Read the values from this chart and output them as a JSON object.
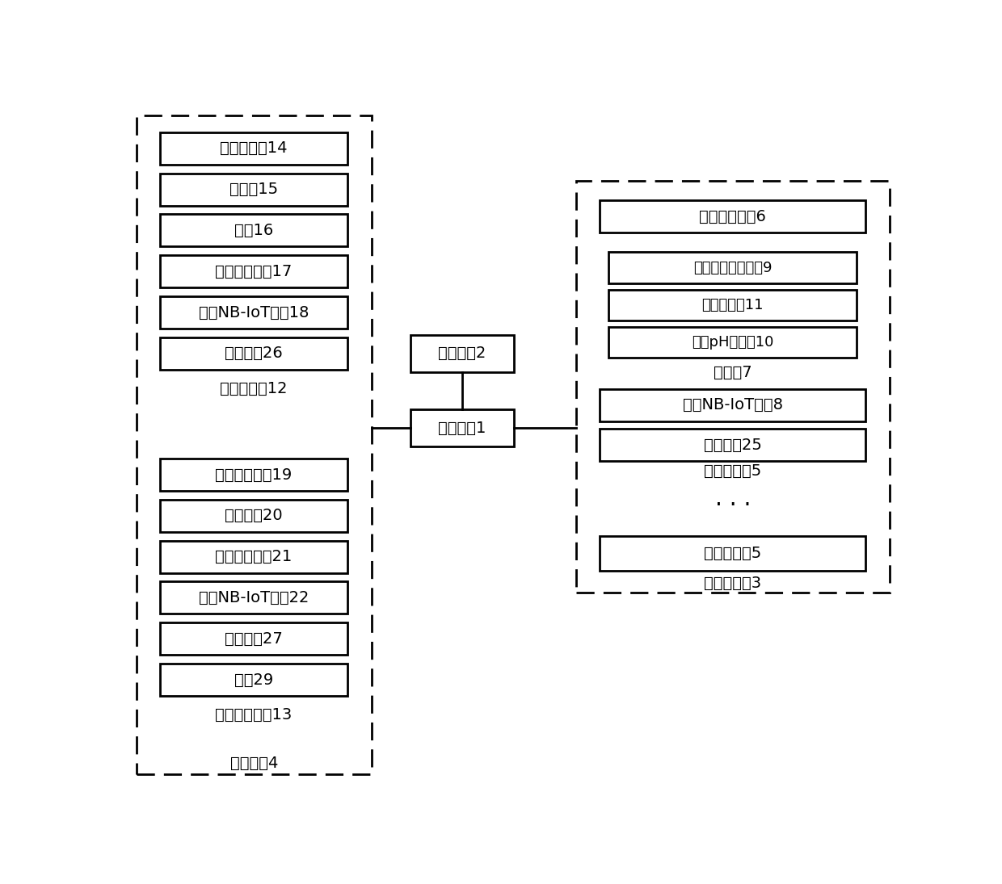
{
  "sprinkler_boxes": [
    "浇水器阀门14",
    "浇水器15",
    "水管16",
    "第二微处理器17",
    "第二NB-IoT模块18",
    "第二电源26"
  ],
  "sprinkler_label": "浇水器节点12",
  "rail_boxes": [
    "滑轨电机阀门19",
    "滑轨电机20",
    "第三微处理器21",
    "第三NB-IoT模块22",
    "第三电源27",
    "滑轮29"
  ],
  "rail_label": "滑轨电机节点13",
  "valve_network_label": "阀门网络4",
  "remote_label": "远程终端2",
  "cloud_label": "云服务器1",
  "sensor_node_top_box": "第一微处理器6",
  "sensor7_boxes": [
    "土壤温湿度传感器9",
    "图像传感器11",
    "土壤pH传感器10"
  ],
  "sensor7_label": "传感器7",
  "nb_box": "第一NB-IoT模块8",
  "power_box": "第一电源25",
  "sensor_node_label": "传感器节点5",
  "sensor_node2_label": "传感器节点5",
  "sensor_network_label": "传感器网络3",
  "dots": "·  ·  ·"
}
